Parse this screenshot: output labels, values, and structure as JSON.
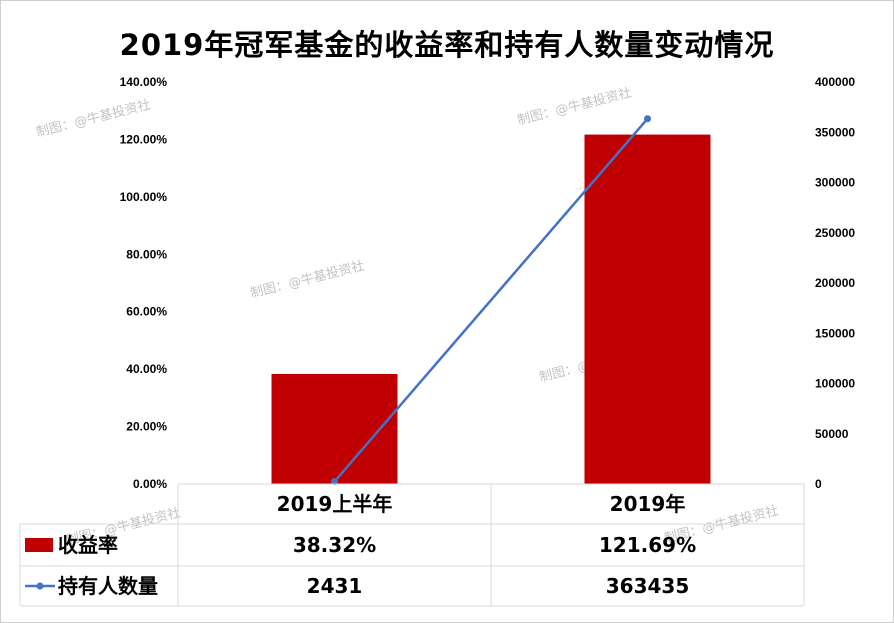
{
  "title": "2019年冠军基金的收益率和持有人数量变动情况",
  "watermark": "制图：@牛基投资社",
  "colors": {
    "bar": "#c00000",
    "line": "#4472c4",
    "grid": "#d9d9d9"
  },
  "chart_data": {
    "type": "bar+line",
    "categories": [
      "2019上半年",
      "2019年"
    ],
    "series": [
      {
        "name": "收益率",
        "type": "bar",
        "axis": "left",
        "values": [
          38.32,
          121.69
        ],
        "labels": [
          "38.32%",
          "121.69%"
        ]
      },
      {
        "name": "持有人数量",
        "type": "line",
        "axis": "right",
        "values": [
          2431,
          363435
        ],
        "labels": [
          "2431",
          "363435"
        ]
      }
    ],
    "y_left": {
      "range": [
        0,
        140
      ],
      "ticks": [
        "0.00%",
        "20.00%",
        "40.00%",
        "60.00%",
        "80.00%",
        "100.00%",
        "120.00%",
        "140.00%"
      ]
    },
    "y_right": {
      "range": [
        0,
        400000
      ],
      "ticks": [
        "0",
        "50000",
        "100000",
        "150000",
        "200000",
        "250000",
        "300000",
        "350000",
        "400000"
      ]
    },
    "legend": "data-table",
    "grid": false
  }
}
